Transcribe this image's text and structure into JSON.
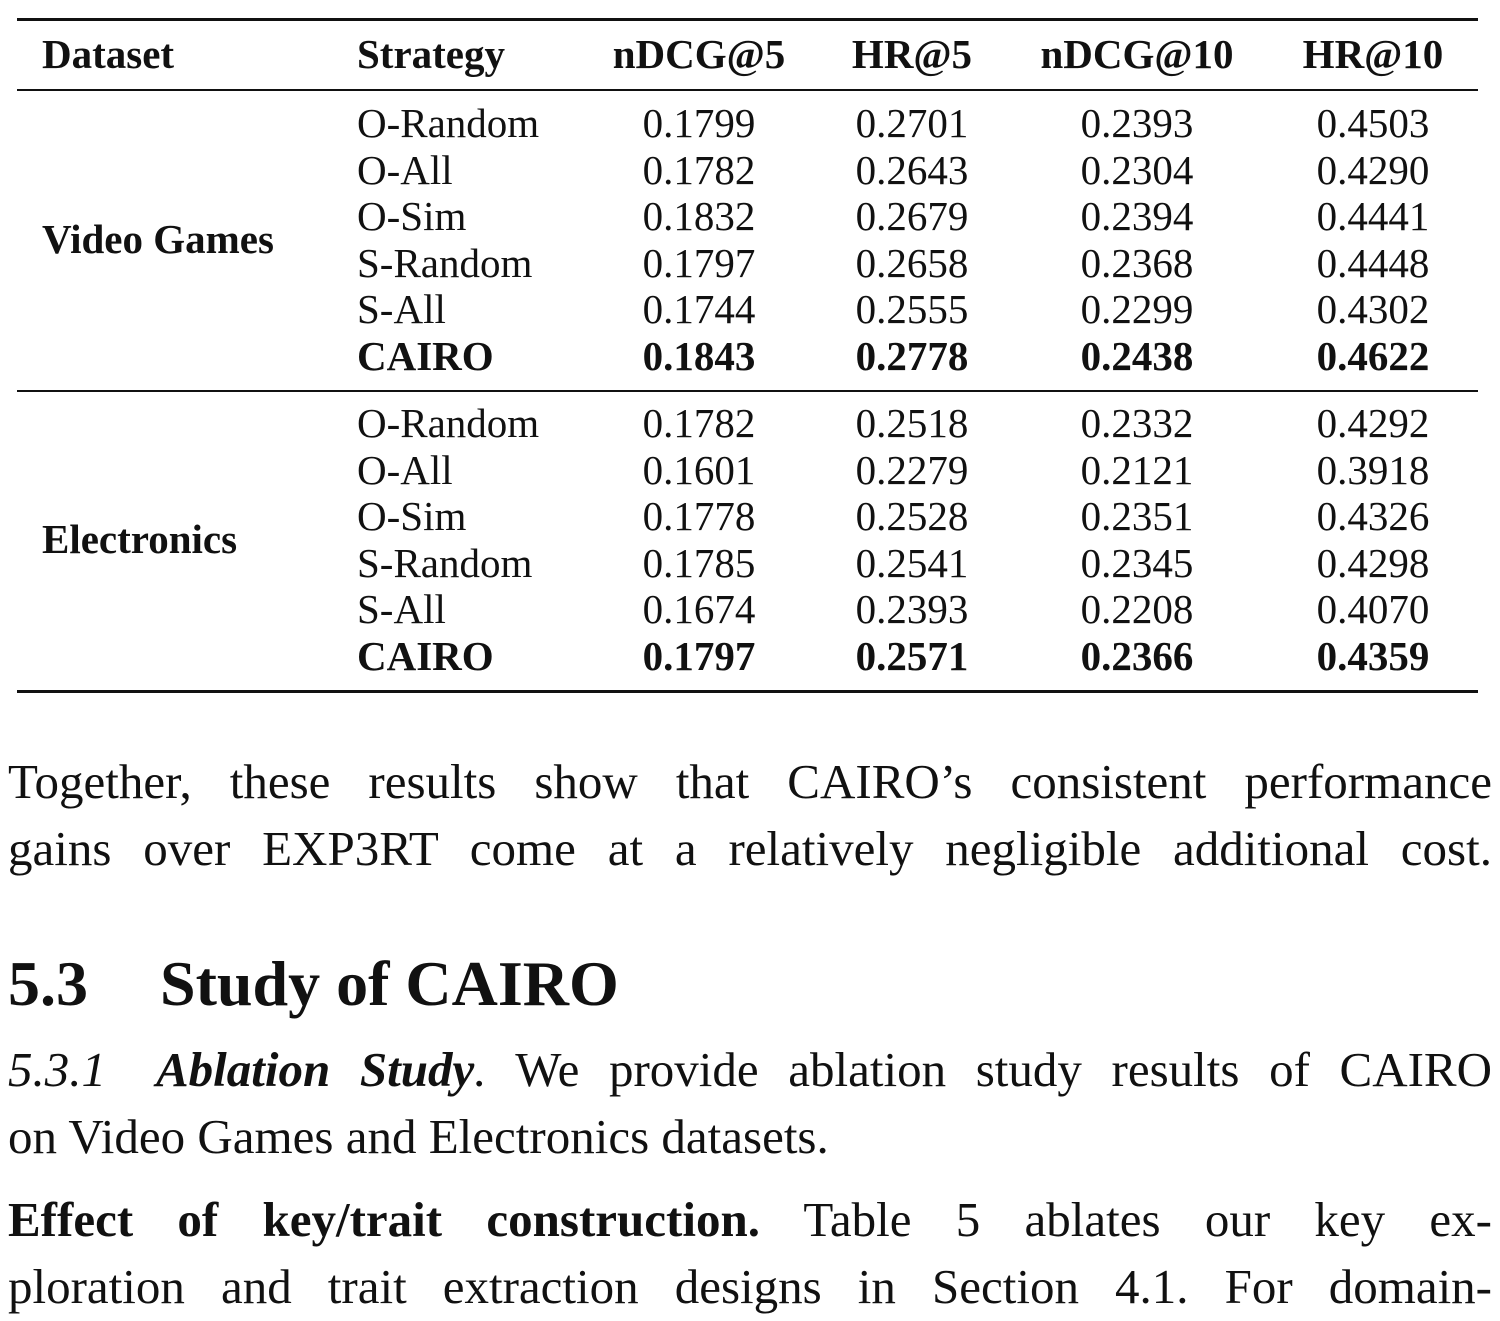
{
  "table": {
    "headers": [
      "Dataset",
      "Strategy",
      "nDCG@5",
      "HR@5",
      "nDCG@10",
      "HR@10"
    ],
    "groups": [
      {
        "dataset": "Video Games",
        "rows": [
          {
            "strategy": "O-Random",
            "values": [
              "0.1799",
              "0.2701",
              "0.2393",
              "0.4503"
            ],
            "bold": false
          },
          {
            "strategy": "O-All",
            "values": [
              "0.1782",
              "0.2643",
              "0.2304",
              "0.4290"
            ],
            "bold": false
          },
          {
            "strategy": "O-Sim",
            "values": [
              "0.1832",
              "0.2679",
              "0.2394",
              "0.4441"
            ],
            "bold": false
          },
          {
            "strategy": "S-Random",
            "values": [
              "0.1797",
              "0.2658",
              "0.2368",
              "0.4448"
            ],
            "bold": false
          },
          {
            "strategy": "S-All",
            "values": [
              "0.1744",
              "0.2555",
              "0.2299",
              "0.4302"
            ],
            "bold": false
          },
          {
            "strategy": "CAIRO",
            "values": [
              "0.1843",
              "0.2778",
              "0.2438",
              "0.4622"
            ],
            "bold": true
          }
        ]
      },
      {
        "dataset": "Electronics",
        "rows": [
          {
            "strategy": "O-Random",
            "values": [
              "0.1782",
              "0.2518",
              "0.2332",
              "0.4292"
            ],
            "bold": false
          },
          {
            "strategy": "O-All",
            "values": [
              "0.1601",
              "0.2279",
              "0.2121",
              "0.3918"
            ],
            "bold": false
          },
          {
            "strategy": "O-Sim",
            "values": [
              "0.1778",
              "0.2528",
              "0.2351",
              "0.4326"
            ],
            "bold": false
          },
          {
            "strategy": "S-Random",
            "values": [
              "0.1785",
              "0.2541",
              "0.2345",
              "0.4298"
            ],
            "bold": false
          },
          {
            "strategy": "S-All",
            "values": [
              "0.1674",
              "0.2393",
              "0.2208",
              "0.4070"
            ],
            "bold": false
          },
          {
            "strategy": "CAIRO",
            "values": [
              "0.1797",
              "0.2571",
              "0.2366",
              "0.4359"
            ],
            "bold": true
          }
        ]
      }
    ]
  },
  "paragraph1": {
    "line1": "Together, these results show that CAIRO’s consistent performance",
    "line2": "gains over EXP3RT come at a relatively negligible additional cost."
  },
  "section": {
    "number": "5.3",
    "title": "Study of CAIRO"
  },
  "subsection": {
    "number": "5.3.1",
    "title": "Ablation Study",
    "title_punct": ".",
    "text_line1": "We provide ablation study results of CAIRO",
    "text_line2": "on Video Games and Electronics datasets."
  },
  "paragraph2": {
    "lead": "Effect of key/trait construction.",
    "line1_rest": "Table 5 ablates our key ex-",
    "line2": "ploration and trait extraction designs in Section 4.1. For domain-"
  }
}
